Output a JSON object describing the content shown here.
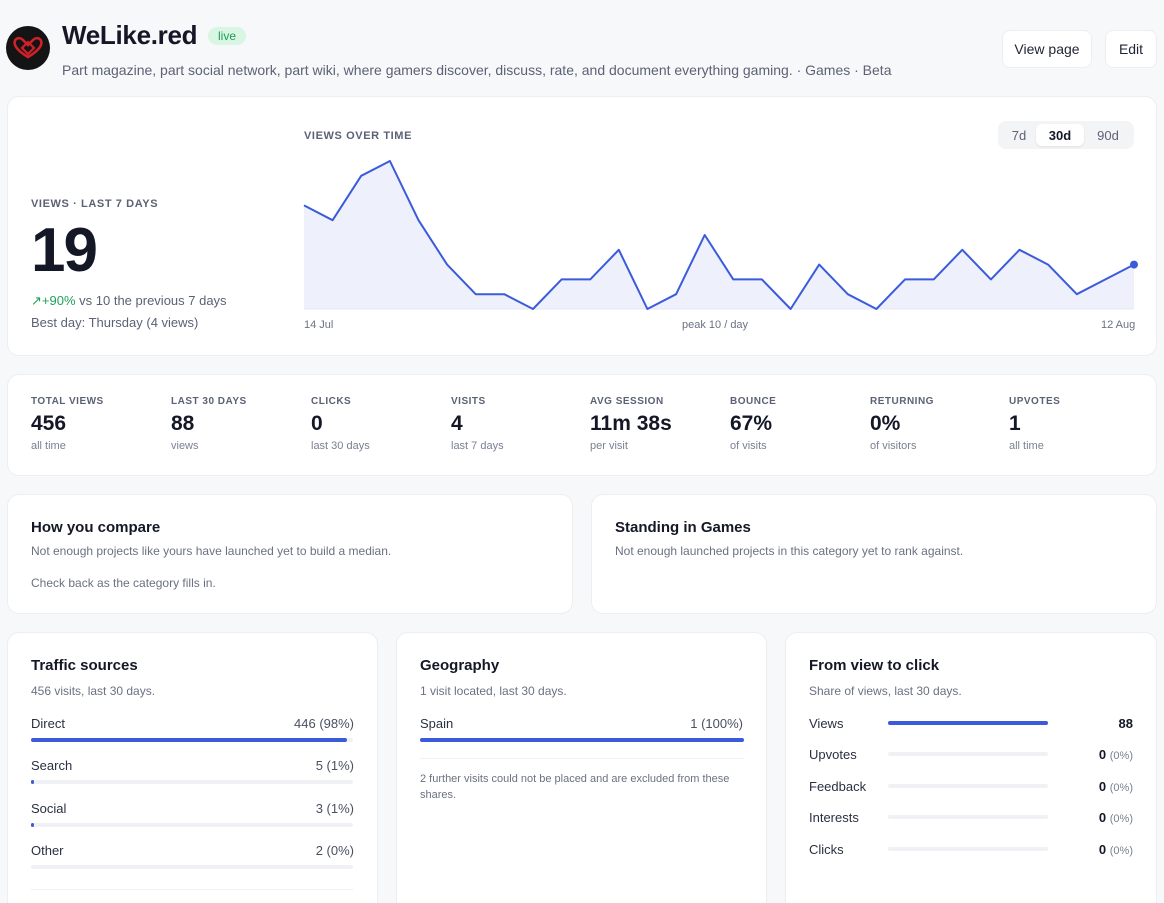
{
  "header": {
    "title": "WeLike.red",
    "badge": "live",
    "subtitle": "Part magazine, part social network, part wiki, where gamers discover, discuss, rate, and document everything gaming. · Games · Beta",
    "view_page": "View page",
    "edit": "Edit"
  },
  "views": {
    "kicker": "VIEWS · LAST 7 DAYS",
    "value": "19",
    "delta": "+90%",
    "delta_text": " vs 10 the previous 7 days",
    "best_day": "Best day: Thursday (4 views)"
  },
  "chart_data": {
    "type": "area",
    "title": "VIEWS OVER TIME",
    "x_start_label": "14 Jul",
    "x_end_label": "12 Aug",
    "peak_label": "peak 10 / day",
    "ranges": [
      "7d",
      "30d",
      "90d"
    ],
    "active_range": "30d",
    "ylim": [
      0,
      10
    ],
    "values": [
      7,
      6,
      9,
      10,
      6,
      3,
      1,
      1,
      0,
      2,
      2,
      4,
      0,
      1,
      5,
      2,
      2,
      0,
      3,
      1,
      0,
      2,
      2,
      4,
      2,
      4,
      3,
      1,
      2,
      3
    ]
  },
  "stats": [
    {
      "label": "TOTAL VIEWS",
      "value": "456",
      "sub": "all time"
    },
    {
      "label": "LAST 30 DAYS",
      "value": "88",
      "sub": "views"
    },
    {
      "label": "CLICKS",
      "value": "0",
      "sub": "last 30 days"
    },
    {
      "label": "VISITS",
      "value": "4",
      "sub": "last 7 days"
    },
    {
      "label": "AVG SESSION",
      "value": "11m 38s",
      "sub": "per visit"
    },
    {
      "label": "BOUNCE",
      "value": "67%",
      "sub": "of visits"
    },
    {
      "label": "RETURNING",
      "value": "0%",
      "sub": "of visitors"
    },
    {
      "label": "UPVOTES",
      "value": "1",
      "sub": "all time"
    }
  ],
  "compare": {
    "title": "How you compare",
    "line1": "Not enough projects like yours have launched yet to build a median.",
    "line2": "Check back as the category fills in."
  },
  "standing": {
    "title": "Standing in Games",
    "line1": "Not enough launched projects in this category yet to rank against."
  },
  "traffic": {
    "title": "Traffic sources",
    "sub": "456 visits, last 30 days.",
    "rows": [
      {
        "label": "Direct",
        "value": "446 (98%)",
        "fraction": 0.98
      },
      {
        "label": "Search",
        "value": "5 (1%)",
        "fraction": 0.01
      },
      {
        "label": "Social",
        "value": "3 (1%)",
        "fraction": 0.01
      },
      {
        "label": "Other",
        "value": "2 (0%)",
        "fraction": 0.0
      }
    ]
  },
  "geo": {
    "title": "Geography",
    "sub": "1 visit located, last 30 days.",
    "rows": [
      {
        "label": "Spain",
        "value": "1 (100%)",
        "fraction": 1.0
      }
    ],
    "note": "2 further visits could not be placed and are excluded from these shares."
  },
  "funnel": {
    "title": "From view to click",
    "sub": "Share of views, last 30 days.",
    "rows": [
      {
        "label": "Views",
        "value": "88",
        "pct": "",
        "fraction": 1.0
      },
      {
        "label": "Upvotes",
        "value": "0",
        "pct": "(0%)",
        "fraction": 0.0
      },
      {
        "label": "Feedback",
        "value": "0",
        "pct": "(0%)",
        "fraction": 0.0
      },
      {
        "label": "Interests",
        "value": "0",
        "pct": "(0%)",
        "fraction": 0.0
      },
      {
        "label": "Clicks",
        "value": "0",
        "pct": "(0%)",
        "fraction": 0.0
      }
    ]
  },
  "colors": {
    "accent": "#3b5bdb",
    "area_fill": "#eef1fc",
    "positive": "#22a05a",
    "logo_red": "#d0202a"
  }
}
